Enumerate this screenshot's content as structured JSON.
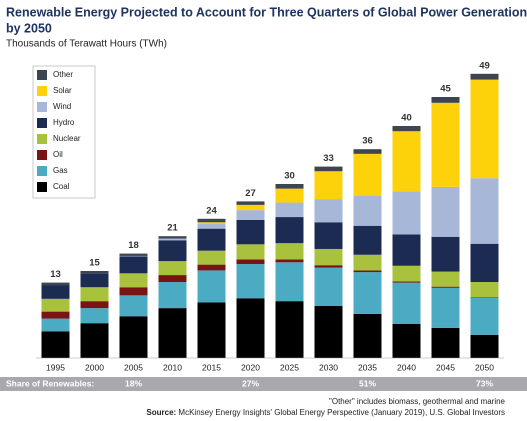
{
  "chart_data": {
    "type": "stacked_bar",
    "title": [
      "Renewable Energy Projected to Account for Three Quarters of Global Power Generation",
      "by 2050"
    ],
    "subtitle": "Thousands of Terawatt Hours (TWh)",
    "categories": [
      "1995",
      "2000",
      "2005",
      "2010",
      "2015",
      "2020",
      "2025",
      "2030",
      "2035",
      "2040",
      "2045",
      "2050"
    ],
    "series": [
      {
        "name": "Coal",
        "color": "#000000",
        "values": [
          4.6,
          6.0,
          7.2,
          8.6,
          9.6,
          10.3,
          9.8,
          9.0,
          7.6,
          5.9,
          5.2,
          4.0
        ]
      },
      {
        "name": "Gas",
        "color": "#4aabc3",
        "values": [
          2.2,
          2.6,
          3.6,
          4.5,
          5.5,
          5.9,
          6.7,
          6.6,
          7.2,
          7.1,
          6.9,
          6.4
        ]
      },
      {
        "name": "Oil",
        "color": "#7a1414",
        "values": [
          1.2,
          1.2,
          1.4,
          1.2,
          1.0,
          0.8,
          0.5,
          0.4,
          0.3,
          0.2,
          0.2,
          0.1
        ]
      },
      {
        "name": "Nuclear",
        "color": "#a8c23e",
        "values": [
          2.2,
          2.4,
          2.4,
          2.4,
          2.4,
          2.6,
          2.8,
          2.8,
          2.7,
          2.7,
          2.6,
          2.6
        ]
      },
      {
        "name": "Hydro",
        "color": "#1c2b52",
        "values": [
          2.3,
          2.4,
          2.9,
          3.6,
          3.8,
          4.2,
          4.5,
          4.6,
          5.0,
          5.4,
          6.0,
          6.6
        ]
      },
      {
        "name": "Wind",
        "color": "#a6b7d7",
        "values": [
          0,
          0,
          0.1,
          0.3,
          0.8,
          1.7,
          2.5,
          4.0,
          5.2,
          7.4,
          8.6,
          11.3
        ]
      },
      {
        "name": "Solar",
        "color": "#fdd20b",
        "values": [
          0,
          0,
          0,
          0,
          0.3,
          0.9,
          2.4,
          4.8,
          7.2,
          10.4,
          14.5,
          17.0
        ]
      },
      {
        "name": "Other",
        "color": "#3d4550",
        "values": [
          0.5,
          0.4,
          0.4,
          0.4,
          0.6,
          0.6,
          0.8,
          0.8,
          0.8,
          0.9,
          1.0,
          1.0
        ]
      }
    ],
    "totals": [
      13,
      15,
      18,
      21,
      24,
      27,
      30,
      33,
      36,
      40,
      45,
      49
    ],
    "share_of_renewables": {
      "label": "Share of Renewables:",
      "categories": [
        "2005",
        "2020",
        "2035",
        "2050"
      ],
      "values": [
        18,
        27,
        51,
        73
      ],
      "value_labels": [
        "18%",
        "27%",
        "51%",
        "73%"
      ]
    },
    "footnote": "\"Other\" includes biomass, geothermal and marine",
    "source_label": "Source:",
    "source": "McKinsey Energy Insights' Global Energy Perspective (January 2019), U.S. Global Investors"
  }
}
